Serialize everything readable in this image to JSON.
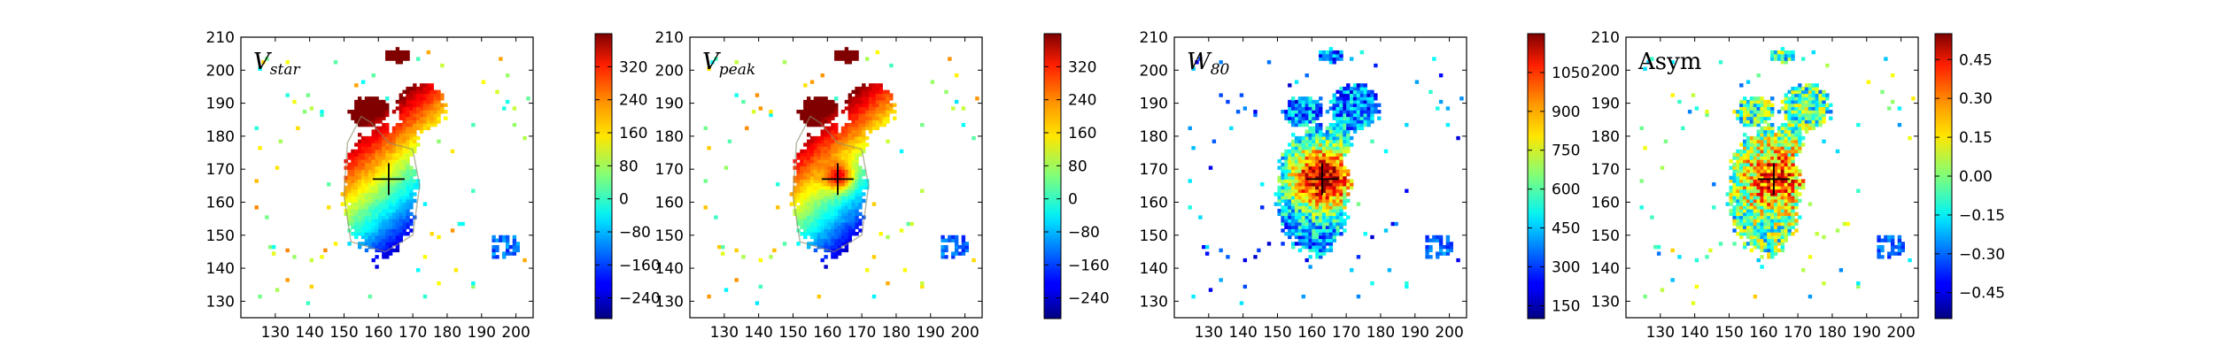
{
  "chart_data": [
    {
      "type": "heatmap",
      "title": "V",
      "title_sub": "star",
      "title_italic": true,
      "xlim": [
        120,
        205
      ],
      "ylim": [
        125,
        210
      ],
      "xticks": [
        130,
        140,
        150,
        160,
        170,
        180,
        190,
        200
      ],
      "yticks": [
        130,
        140,
        150,
        160,
        170,
        180,
        190,
        200,
        210
      ],
      "colorbar": {
        "min": -290,
        "max": 400,
        "ticks": [
          -240,
          -160,
          -80,
          0,
          80,
          160,
          240,
          320
        ],
        "colormap": "jet"
      },
      "center_marker": [
        163,
        167
      ],
      "pattern": "gradient"
    },
    {
      "type": "heatmap",
      "title": "V",
      "title_sub": "peak",
      "title_italic": true,
      "xlim": [
        120,
        205
      ],
      "ylim": [
        125,
        210
      ],
      "xticks": [
        130,
        140,
        150,
        160,
        170,
        180,
        190,
        200
      ],
      "yticks": [
        130,
        140,
        150,
        160,
        170,
        180,
        190,
        200,
        210
      ],
      "colorbar": {
        "min": -290,
        "max": 400,
        "ticks": [
          -240,
          -160,
          -80,
          0,
          80,
          160,
          240,
          320
        ],
        "colormap": "jet"
      },
      "center_marker": [
        163,
        167
      ],
      "pattern": "gradient_peak"
    },
    {
      "type": "heatmap",
      "title": "W",
      "title_sub": "80",
      "title_italic": true,
      "xlim": [
        120,
        205
      ],
      "ylim": [
        125,
        210
      ],
      "xticks": [
        130,
        140,
        150,
        160,
        170,
        180,
        190,
        200
      ],
      "yticks": [
        130,
        140,
        150,
        160,
        170,
        180,
        190,
        200,
        210
      ],
      "colorbar": {
        "min": 100,
        "max": 1200,
        "ticks": [
          150,
          300,
          450,
          600,
          750,
          900,
          1050
        ],
        "colormap": "jet"
      },
      "center_marker": [
        163,
        167
      ],
      "pattern": "width"
    },
    {
      "type": "heatmap",
      "title": "Asym",
      "title_sub": "",
      "title_italic": false,
      "xlim": [
        120,
        205
      ],
      "ylim": [
        125,
        210
      ],
      "xticks": [
        130,
        140,
        150,
        160,
        170,
        180,
        190,
        200
      ],
      "yticks": [
        130,
        140,
        150,
        160,
        170,
        180,
        190,
        200,
        210
      ],
      "colorbar": {
        "min": -0.55,
        "max": 0.55,
        "ticks": [
          -0.45,
          -0.3,
          -0.15,
          0.0,
          0.15,
          0.3,
          0.45
        ],
        "tick_labels": [
          "−0.45",
          "−0.30",
          "−0.15",
          "0.00",
          "0.15",
          "0.30",
          "0.45"
        ],
        "colormap": "jet"
      },
      "center_marker": [
        163,
        167
      ],
      "pattern": "asym"
    }
  ]
}
